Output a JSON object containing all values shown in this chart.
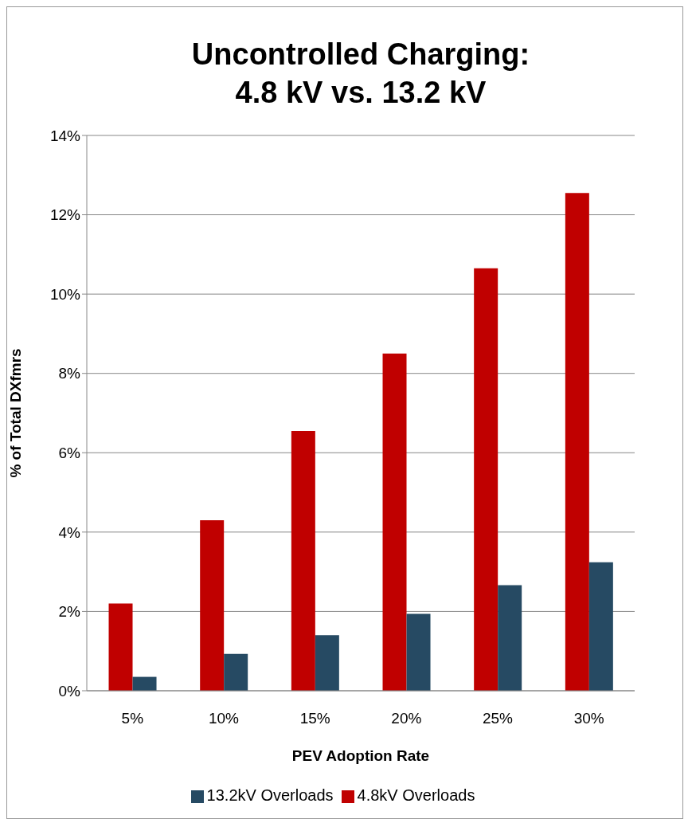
{
  "chart_data": {
    "type": "bar",
    "title": "Uncontrolled Charging:\n4.8 kV vs. 13.2 kV",
    "xlabel": "PEV Adoption Rate",
    "ylabel": "% of Total DXfmrs",
    "categories": [
      "5%",
      "10%",
      "15%",
      "20%",
      "25%",
      "30%"
    ],
    "series": [
      {
        "name": "4.8kV Overloads",
        "color": "#c00000",
        "values": [
          2.2,
          4.3,
          6.55,
          8.5,
          10.65,
          12.55
        ]
      },
      {
        "name": "13.2kV Overloads",
        "color": "#264a63",
        "values": [
          0.35,
          0.93,
          1.4,
          1.94,
          2.66,
          3.24
        ]
      }
    ],
    "ylim": [
      0,
      14
    ],
    "yticks": [
      {
        "value": 0,
        "label": "0%"
      },
      {
        "value": 2,
        "label": "2%"
      },
      {
        "value": 4,
        "label": "4%"
      },
      {
        "value": 6,
        "label": "6%"
      },
      {
        "value": 8,
        "label": "8%"
      },
      {
        "value": 10,
        "label": "10%"
      },
      {
        "value": 12,
        "label": "12%"
      },
      {
        "value": 14,
        "label": "14%"
      }
    ],
    "grid": "y",
    "legend": "bottom"
  }
}
